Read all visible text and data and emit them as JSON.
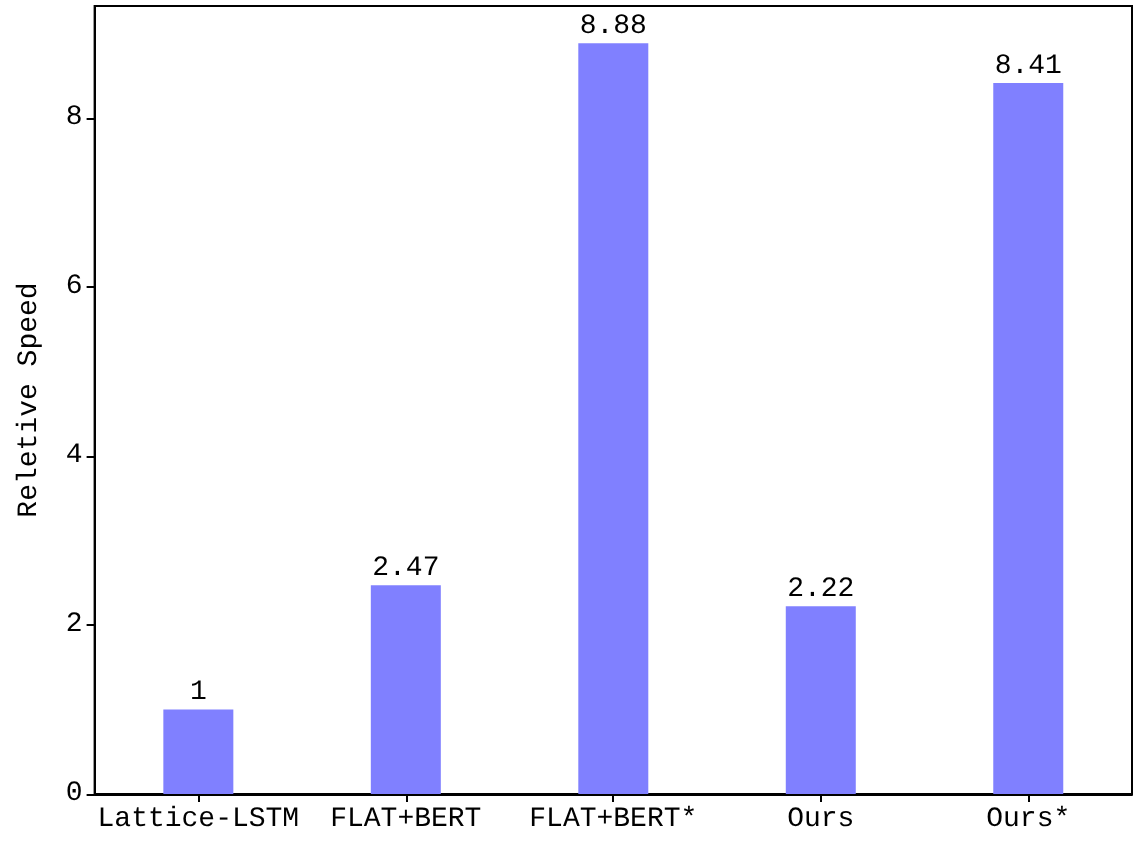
{
  "chart_data": {
    "type": "bar",
    "ylabel": "Reletive Speed",
    "categories": [
      "Lattice-LSTM",
      "FLAT+BERT",
      "FLAT+BERT*",
      "Ours",
      "Ours*"
    ],
    "values": [
      1,
      2.47,
      8.88,
      2.22,
      8.41
    ],
    "color": "#8080ff",
    "data_labels": true,
    "ylim": [
      0,
      9.32
    ],
    "yticks": [
      0,
      2,
      4,
      6,
      8
    ],
    "grid": false
  }
}
